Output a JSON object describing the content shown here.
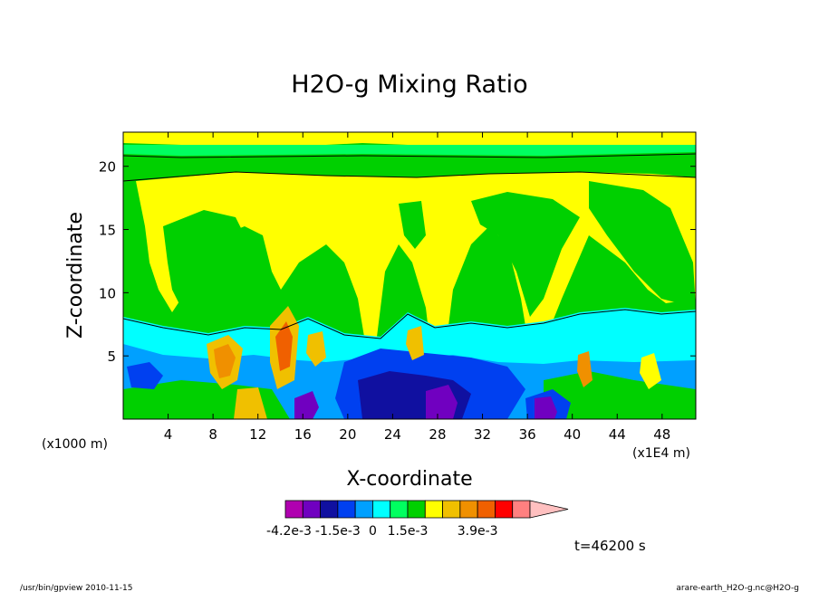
{
  "chart_data": {
    "type": "heatmap",
    "title": "H2O-g Mixing Ratio",
    "xlabel": "X-coordinate",
    "ylabel": "Z-coordinate",
    "x_unit_left": "(x1000 m)",
    "x_unit_right": "(x1E4 m)",
    "xticks": [
      "4",
      "8",
      "12",
      "16",
      "20",
      "24",
      "28",
      "32",
      "36",
      "40",
      "44",
      "48"
    ],
    "yticks": [
      "5",
      "10",
      "15",
      "20"
    ],
    "xlim": [
      0,
      51
    ],
    "ylim": [
      0,
      22.7
    ],
    "time_label": "t=46200 s",
    "colorbar": {
      "colors": [
        "#b000b0",
        "#7000c0",
        "#1010a0",
        "#0040f0",
        "#00a0ff",
        "#00ffff",
        "#00ff60",
        "#00d000",
        "#ffff00",
        "#f0c000",
        "#f09000",
        "#f06000",
        "#ff0000",
        "#ff8080",
        "#ffc0c0"
      ],
      "labels": [
        "-4.2e-3",
        "-1.5e-3",
        "0",
        "1.5e-3",
        "3.9e-3"
      ]
    },
    "levels": {
      "upper_band": "#00d000",
      "mid": "#ffff00",
      "lower": "#00ffff",
      "low_neg": "#0040f0",
      "deep_neg": "#7000c0",
      "pos_core": "#f06000"
    }
  },
  "footer": {
    "left": "/usr/bin/gpview   2010-11-15",
    "right": "arare-earth_H2O-g.nc@H2O-g"
  }
}
